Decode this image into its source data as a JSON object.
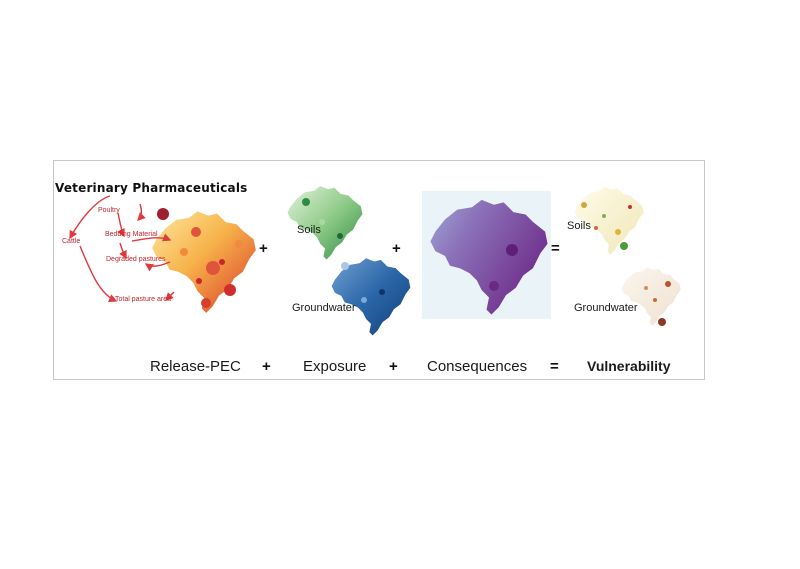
{
  "title": "Veterinary Pharmaceuticals",
  "flow_labels": {
    "poultry": "Poultry",
    "cattle": "Cattle",
    "bedding": "Bedding Material",
    "degraded": "Degraded pastures",
    "total": "Total pasture area"
  },
  "map_labels": {
    "soils_exposure": "Soils",
    "groundwater_exposure": "Groundwater",
    "soils_vuln": "Soils",
    "groundwater_vuln": "Groundwater"
  },
  "operators": {
    "plus": "+",
    "equals": "="
  },
  "captions": {
    "release": "Release-PEC",
    "exposure": "Exposure",
    "consequences": "Consequences",
    "vulnerability": "Vulnerability"
  },
  "colors": {
    "release": "#f2a33a",
    "soils": "#6fb46b",
    "groundwater": "#1f5a9a",
    "consequences": "#7a2f8f",
    "vulnerability": "#c96a3a",
    "arrow": "#e0393e"
  }
}
